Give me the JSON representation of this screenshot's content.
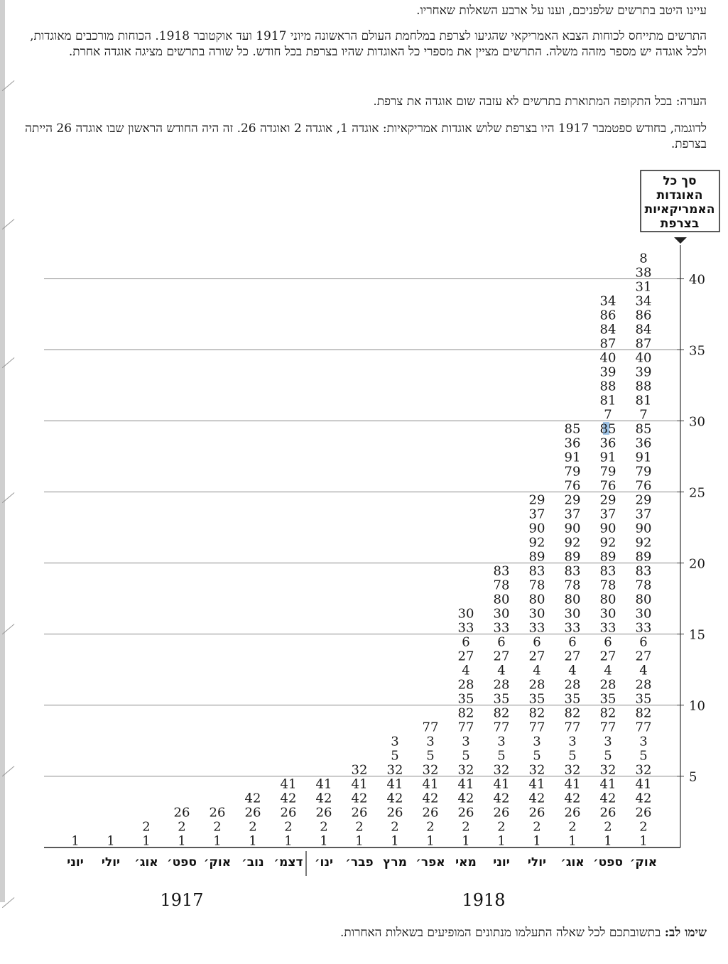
{
  "intro": "עיינו היטב בתרשים שלפניכם, וענו על ארבע השאלות שאחריו.",
  "description": "התרשים מתייחס לכוחות הצבא האמריקאי שהגיעו לצרפת במלחמת העולם הראשונה מיוני 1917 ועד אוקטובר 1918. הכוחות מורכבים מאוגדות, ולכל אוגדה יש מספר מזהה משלה. התרשים מציין את מספרי כל האוגדות שהיו בצרפת בכל חודש. כל שורה בתרשים מציגה אוגדה אחרת.",
  "note": "הערה: בכל התקופה המתוארת בתרשים לא עזבה שום אוגדה את צרפת.",
  "example": "לדוגמה, בחודש ספטמבר 1917 היו בצרפת שלוש אוגדות אמריקאיות: אוגדה 1, אוגדה 2 ואוגדה 26. זה היה החודש הראשון שבו אוגדה 26 הייתה בצרפת.",
  "footer_label": "שימו לב:",
  "footer_text": " בתשובתכם לכל שאלה התעלמו מנתונים המופיעים בשאלות האחרות.",
  "colors": {
    "text": "#1a1a1a",
    "grid": "#888888",
    "highlight": "#9ec3e6"
  },
  "chart_data": {
    "type": "table",
    "title": "",
    "ylabel": "סך כל האוגדות האמריקאיות בצרפת",
    "y_ticks": [
      5,
      10,
      15,
      20,
      25,
      30,
      35,
      40
    ],
    "ylim": [
      0,
      42
    ],
    "grid": true,
    "months": [
      "יוני",
      "יולי",
      "אוג׳",
      "ספט׳",
      "אוק׳",
      "נוב׳",
      "דצמ׳",
      "ינו׳",
      "פבר׳",
      "מרץ",
      "אפר׳",
      "מאי",
      "יוני",
      "יולי",
      "אוג׳",
      "ספט׳",
      "אוק׳"
    ],
    "years": [
      {
        "label": "1917",
        "months": [
          0,
          6
        ]
      },
      {
        "label": "1918",
        "months": [
          7,
          16
        ]
      }
    ],
    "division_order": [
      1,
      2,
      26,
      42,
      41,
      32,
      5,
      3,
      77,
      82,
      35,
      28,
      4,
      27,
      6,
      33,
      30,
      80,
      78,
      83,
      89,
      92,
      90,
      37,
      29,
      76,
      79,
      91,
      36,
      85,
      7,
      81,
      88,
      39,
      40,
      87,
      84,
      86,
      34,
      31,
      38,
      8
    ],
    "counts": [
      1,
      1,
      2,
      3,
      3,
      4,
      5,
      5,
      6,
      8,
      9,
      17,
      20,
      25,
      30,
      39,
      42
    ],
    "highlighted": {
      "month_index": 15,
      "division": 85
    }
  }
}
